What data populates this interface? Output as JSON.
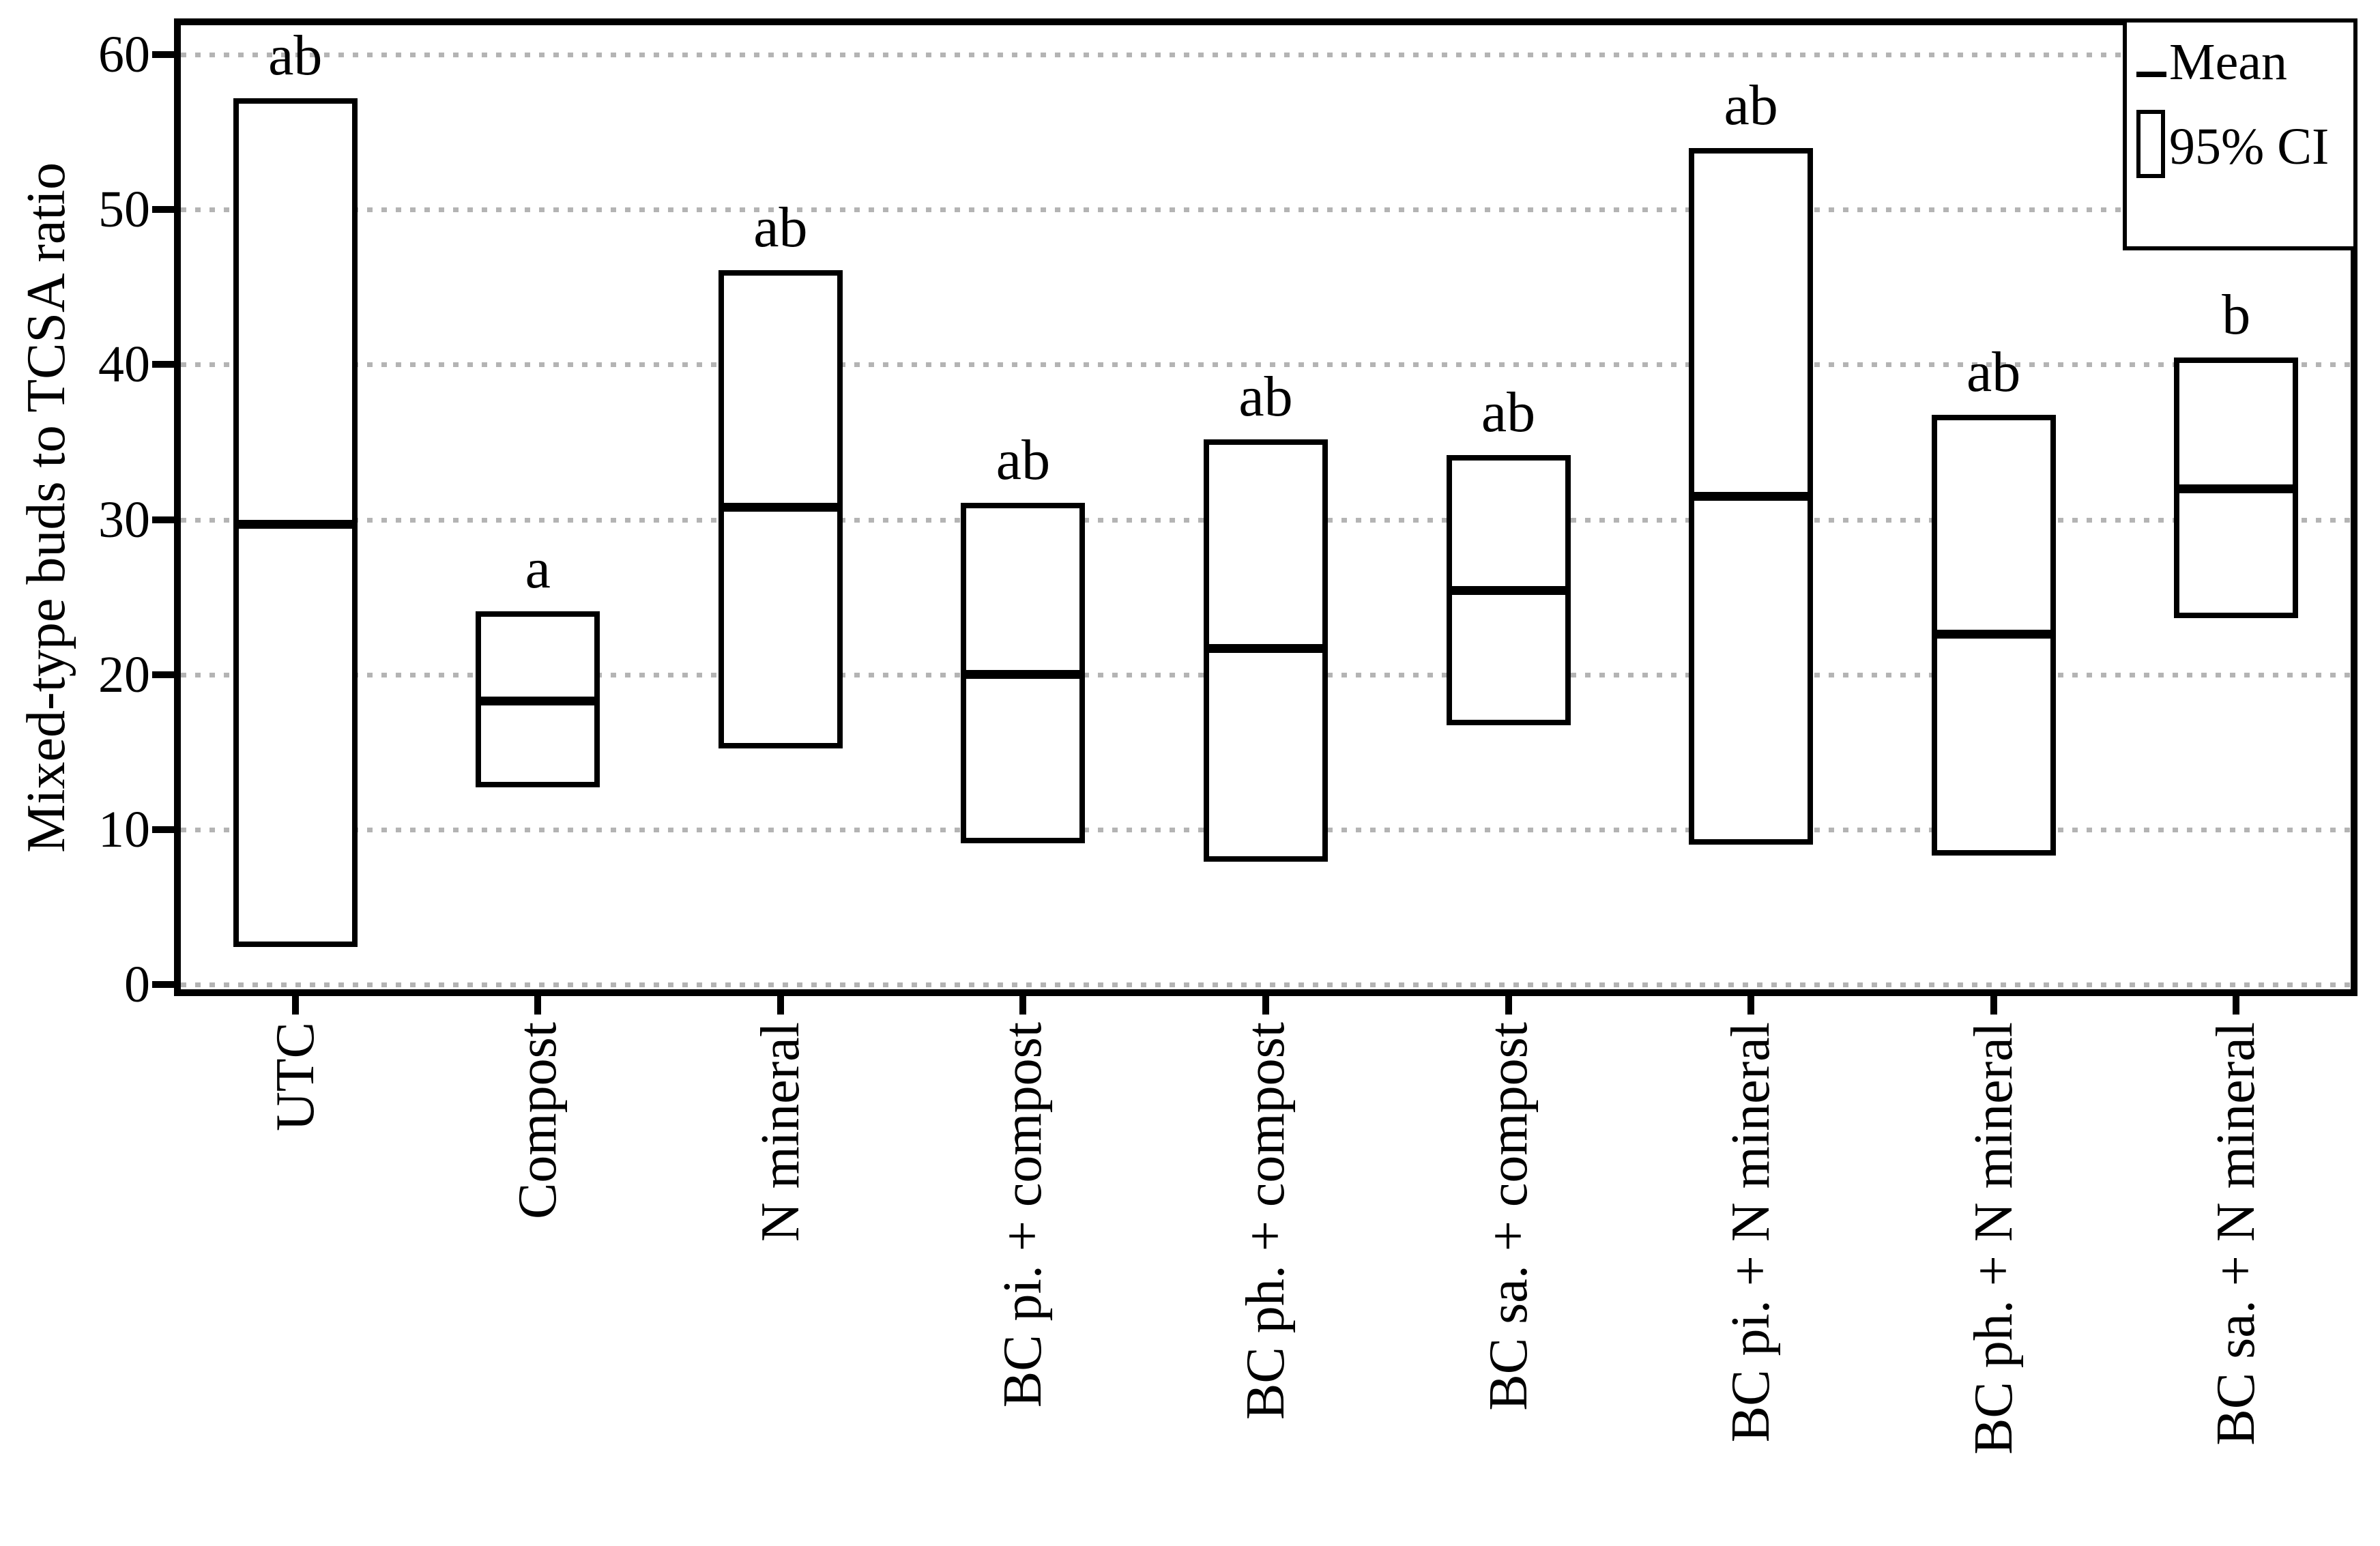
{
  "colors": {
    "box_stroke": "#000000",
    "mean_line": "#000000",
    "gridline": "#b4b4b4",
    "background": "#ffffff",
    "text": "#000000"
  },
  "chart_data": {
    "type": "box-ci",
    "title": "",
    "xlabel": "",
    "ylabel": "Mixed-type buds to TCSA ratio",
    "categories": [
      "UTC",
      "Compost",
      "N mineral",
      "BC pi. + compost",
      "BC ph. + compost",
      "BC sa. + compost",
      "BC pi. + N mineral",
      "BC ph. + N mineral",
      "BC sa. + N mineral"
    ],
    "series": [
      {
        "name": "Mean",
        "values": [
          29.7,
          18.3,
          30.8,
          20.0,
          21.7,
          25.4,
          31.5,
          22.6,
          32.0
        ]
      },
      {
        "name": "95% CI upper",
        "values": [
          57.0,
          23.9,
          45.9,
          30.9,
          35.0,
          34.0,
          53.8,
          36.6,
          40.3
        ]
      },
      {
        "name": "95% CI lower",
        "values": [
          2.6,
          12.9,
          15.4,
          9.3,
          8.1,
          16.9,
          9.2,
          8.5,
          23.8
        ]
      }
    ],
    "sig_letters": [
      "ab",
      "a",
      "ab",
      "ab",
      "ab",
      "ab",
      "ab",
      "ab",
      "b"
    ],
    "ylim": [
      0,
      62
    ],
    "yticks": [
      0,
      10,
      20,
      30,
      40,
      50,
      60
    ],
    "grid": "horizontal-dotted",
    "legend_position": "top-right",
    "legend_entries": [
      "Mean",
      "95% CI"
    ]
  }
}
